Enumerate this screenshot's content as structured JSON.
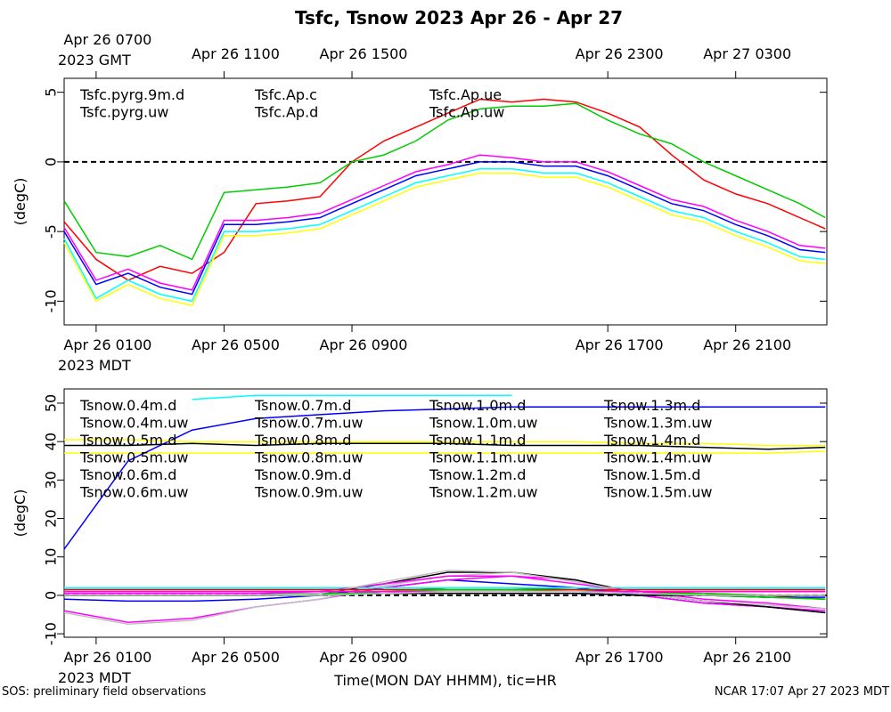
{
  "footer": {
    "left": "SOS: preliminary field observations",
    "right": "NCAR 17:07 Apr 27 2023 MDT"
  },
  "chart_data": [
    {
      "type": "line",
      "title": "Tsfc, Tsnow 2023 Apr 26 - Apr 27",
      "ylabel": "(degC)",
      "xlim": [
        0,
        23.85
      ],
      "ylim": [
        -11.7,
        6
      ],
      "yticks": [
        -10,
        -5,
        0,
        5
      ],
      "xticks": [
        {
          "value": 1,
          "label": "Apr 26 0100"
        },
        {
          "value": 5,
          "label": "Apr 26 0500"
        },
        {
          "value": 9,
          "label": "Apr 26 0900"
        },
        {
          "value": 17,
          "label": "Apr 26 1700"
        },
        {
          "value": 21,
          "label": "Apr 26 2100"
        }
      ],
      "x_sublabel": "2023 MDT",
      "x2ticks": [
        {
          "value": 1,
          "label": "Apr 26 0700"
        },
        {
          "value": 5,
          "label": "Apr 26 1100"
        },
        {
          "value": 9,
          "label": "Apr 26 1500"
        },
        {
          "value": 17,
          "label": "Apr 26 2300"
        },
        {
          "value": 21,
          "label": "Apr 27 0300"
        }
      ],
      "x2_sublabel": "2023 GMT",
      "reference_line": 0,
      "legend_rows": 2,
      "x": [
        0,
        1,
        2,
        3,
        4,
        5,
        6,
        7,
        8,
        9,
        10,
        11,
        12,
        13,
        14,
        15,
        16,
        17,
        18,
        19,
        20,
        21,
        22,
        23,
        23.8
      ],
      "series": [
        {
          "name": "Tsfc.pyrg.9m.d",
          "color": "#ff0000",
          "values": [
            -4.3,
            -7,
            -8.5,
            -7.5,
            -8,
            -6.5,
            -3,
            -2.8,
            -2.5,
            0,
            1.5,
            2.5,
            3.5,
            4.5,
            4.3,
            4.5,
            4.3,
            3.5,
            2.5,
            0.5,
            -1.3,
            -2.3,
            -3,
            -4,
            -4.8
          ]
        },
        {
          "name": "Tsfc.pyrg.uw",
          "color": "#00cc00",
          "values": [
            -2.8,
            -6.5,
            -6.8,
            -6,
            -7,
            -2.2,
            -2,
            -1.8,
            -1.5,
            0,
            0.5,
            1.5,
            3,
            3.8,
            4,
            4,
            4.2,
            3,
            2,
            1.3,
            0,
            -1,
            -2,
            -3,
            -4
          ]
        },
        {
          "name": "Tsfc.Ap.c",
          "color": "#0000ff",
          "values": [
            -5,
            -8.8,
            -8,
            -9,
            -9.5,
            -4.5,
            -4.5,
            -4.3,
            -4,
            -3,
            -2,
            -1,
            -0.5,
            0,
            0,
            -0.3,
            -0.3,
            -1,
            -2,
            -3,
            -3.5,
            -4.5,
            -5.3,
            -6.3,
            -6.5
          ]
        },
        {
          "name": "Tsfc.Ap.d",
          "color": "#00ffff",
          "values": [
            -5.5,
            -9.8,
            -8.5,
            -9.5,
            -10,
            -5,
            -5,
            -4.8,
            -4.5,
            -3.5,
            -2.5,
            -1.5,
            -1,
            -0.5,
            -0.5,
            -0.8,
            -0.8,
            -1.5,
            -2.5,
            -3.5,
            -4,
            -5,
            -5.8,
            -6.8,
            -7
          ]
        },
        {
          "name": "Tsfc.Ap.ue",
          "color": "#ff00ff",
          "values": [
            -4.7,
            -8.5,
            -7.7,
            -8.7,
            -9.2,
            -4.2,
            -4.2,
            -4,
            -3.7,
            -2.7,
            -1.7,
            -0.7,
            -0.2,
            0.5,
            0.3,
            0,
            0,
            -0.7,
            -1.7,
            -2.7,
            -3.2,
            -4.2,
            -5,
            -6,
            -6.2
          ]
        },
        {
          "name": "Tsfc.Ap.uw",
          "color": "#ffff00",
          "values": [
            -5.8,
            -10,
            -8.8,
            -9.8,
            -10.3,
            -5.3,
            -5.3,
            -5.1,
            -4.8,
            -3.8,
            -2.8,
            -1.8,
            -1.3,
            -0.8,
            -0.8,
            -1.1,
            -1.1,
            -1.8,
            -2.8,
            -3.8,
            -4.3,
            -5.3,
            -6.1,
            -7.1,
            -7.3
          ]
        }
      ]
    },
    {
      "type": "line",
      "ylabel": "(degC)",
      "xlabel": "Time(MON DAY HHMM), tic=HR",
      "xlim": [
        0,
        23.85
      ],
      "ylim": [
        -10.9,
        53.7
      ],
      "yticks": [
        -10,
        0,
        10,
        20,
        30,
        40,
        50
      ],
      "xticks": [
        {
          "value": 1,
          "label": "Apr 26 0100"
        },
        {
          "value": 5,
          "label": "Apr 26 0500"
        },
        {
          "value": 9,
          "label": "Apr 26 0900"
        },
        {
          "value": 17,
          "label": "Apr 26 1700"
        },
        {
          "value": 21,
          "label": "Apr 26 2100"
        }
      ],
      "x_sublabel": "2023 MDT",
      "reference_line": 0,
      "legend_rows": 6,
      "x": [
        0,
        2,
        4,
        6,
        8,
        10,
        12,
        14,
        16,
        18,
        20,
        22,
        23.8
      ],
      "series": [
        {
          "name": "Tsnow.0.4m.d",
          "color": "#ff0000",
          "values": [
            0,
            0,
            0,
            0,
            0.5,
            1,
            1.5,
            1.5,
            1.5,
            1,
            0.5,
            0,
            -1
          ]
        },
        {
          "name": "Tsnow.0.4m.uw",
          "color": "#00cc00",
          "values": [
            0.5,
            0.5,
            0.5,
            0.5,
            0.5,
            1,
            2,
            2,
            1.5,
            0.5,
            0,
            -0.5,
            -1
          ]
        },
        {
          "name": "Tsnow.0.5m.d",
          "color": "#0000ff",
          "values": [
            -1,
            -1.5,
            -1.5,
            -1,
            0,
            2,
            4,
            3,
            2,
            0,
            -2,
            -3,
            -4.5
          ]
        },
        {
          "name": "Tsnow.0.5m.uw",
          "color": "#00ffff",
          "values": [
            1.5,
            1.5,
            1.5,
            1.5,
            1.5,
            1.5,
            1.5,
            1.5,
            1.5,
            1.5,
            1.5,
            1.5,
            1.5
          ]
        },
        {
          "name": "Tsnow.0.6m.d",
          "color": "#ff00ff",
          "values": [
            -4,
            -7,
            -6,
            -3,
            -1,
            2,
            4,
            5,
            4,
            0,
            -2,
            -3,
            -4
          ]
        },
        {
          "name": "Tsnow.0.6m.uw",
          "color": "#ffff00",
          "values": [
            0,
            0,
            0,
            0,
            0,
            0.5,
            1,
            1,
            1,
            0.5,
            0,
            0,
            0
          ]
        },
        {
          "name": "Tsnow.0.7m.d",
          "color": "#c0c0c0",
          "values": [
            -4.5,
            -7.5,
            -6.5,
            -3,
            -1,
            2.5,
            5,
            6,
            4,
            0.5,
            -1.5,
            -2.5,
            -3.5
          ]
        },
        {
          "name": "Tsnow.0.7m.uw",
          "color": "#000000",
          "values": [
            0,
            0,
            0,
            0,
            0.5,
            3,
            6,
            6,
            4,
            0.5,
            -1.5,
            -3,
            -4.5
          ]
        },
        {
          "name": "Tsnow.0.8m.d",
          "color": "#ff0000",
          "values": [
            1,
            1,
            1,
            1,
            1,
            1,
            1,
            1,
            1,
            1,
            1,
            1,
            1
          ]
        },
        {
          "name": "Tsnow.0.8m.uw",
          "color": "#00cc00",
          "values": [
            0.5,
            0.5,
            0.5,
            0.5,
            0.5,
            0.5,
            1,
            1,
            1,
            0.5,
            0.5,
            0,
            0
          ]
        },
        {
          "name": "Tsnow.0.9m.d",
          "color": "#0000ff",
          "values": [
            0,
            0,
            0,
            0,
            0,
            0.5,
            0.5,
            0.5,
            0.5,
            0,
            0,
            -0.5,
            -0.5
          ]
        },
        {
          "name": "Tsnow.0.9m.uw",
          "color": "#00ffff",
          "values": [
            2,
            2,
            2,
            2,
            2,
            2,
            2,
            2,
            2,
            2,
            2,
            2,
            2
          ]
        },
        {
          "name": "Tsnow.1.0m.d",
          "color": "#ff00ff",
          "values": [
            0.5,
            0.5,
            0.5,
            0.5,
            1,
            3,
            5,
            5,
            3,
            1,
            -1,
            -2,
            -3.5
          ]
        },
        {
          "name": "Tsnow.1.0m.uw",
          "color": "#ffff00",
          "values": [
            37,
            37,
            37,
            37,
            37,
            37,
            37,
            37,
            37,
            37,
            37,
            37,
            37.5
          ]
        },
        {
          "name": "Tsnow.1.1m.d",
          "color": "#c0c0c0",
          "values": [
            0,
            0,
            0,
            0,
            0.5,
            3.5,
            6.5,
            6,
            3.5,
            0.5,
            -1.5,
            -2.5,
            -3.5
          ]
        },
        {
          "name": "Tsnow.1.1m.uw",
          "color": "#000000",
          "values": [
            0,
            0,
            0,
            0,
            0,
            0.5,
            0.5,
            0.5,
            0.5,
            0,
            0,
            0,
            0
          ]
        },
        {
          "name": "Tsnow.1.2m.d",
          "color": "#ff0000",
          "values": [
            1.5,
            1.5,
            1.5,
            1.5,
            1.5,
            1.5,
            1.5,
            1.5,
            1.5,
            1.5,
            1.5,
            1.5,
            1.5
          ]
        },
        {
          "name": "Tsnow.1.2m.uw",
          "color": "#00cc00",
          "values": [
            0,
            0,
            0,
            0,
            0,
            1,
            1.5,
            1.5,
            1,
            0.5,
            0,
            -0.5,
            -1
          ]
        },
        {
          "name": "Tsnow.1.3m.d",
          "color": "#0000ff",
          "values": [
            12,
            35,
            43,
            46,
            47,
            48,
            48.5,
            49,
            49,
            49,
            49,
            49,
            49
          ]
        },
        {
          "name": "Tsnow.1.3m.uw",
          "color": "#00ffff",
          "values": [
            null,
            null,
            51,
            52,
            52,
            52,
            52,
            52,
            null,
            null,
            null,
            null,
            null
          ]
        },
        {
          "name": "Tsnow.1.4m.d",
          "color": "#ff00ff",
          "values": [
            1,
            1,
            1,
            1,
            1,
            1,
            1,
            1,
            1,
            1,
            1,
            1,
            1
          ]
        },
        {
          "name": "Tsnow.1.4m.uw",
          "color": "#ffff00",
          "values": [
            40.5,
            40.5,
            40,
            40,
            40,
            40,
            40,
            40,
            40,
            39.5,
            39.5,
            39,
            39
          ]
        },
        {
          "name": "Tsnow.1.5m.d",
          "color": "#c0c0c0",
          "values": [
            0,
            0,
            0,
            0,
            0,
            0.5,
            1,
            1,
            1,
            0.5,
            0,
            0,
            0
          ]
        },
        {
          "name": "Tsnow.1.5m.uw",
          "color": "#000000",
          "values": [
            39,
            39,
            39.5,
            39,
            39.5,
            39.5,
            39.5,
            39,
            39,
            39,
            38.5,
            38,
            38.5
          ]
        }
      ]
    }
  ]
}
